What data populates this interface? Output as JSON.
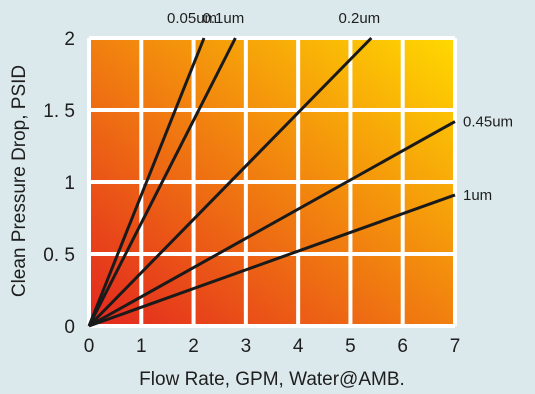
{
  "chart_data": {
    "type": "line",
    "xlabel": "Flow Rate, GPM, Water@AMB.",
    "ylabel": "Clean Pressure Drop, PSID",
    "xlim": [
      0,
      7
    ],
    "ylim": [
      0,
      2
    ],
    "x_ticks": [
      "0",
      "1",
      "2",
      "3",
      "4",
      "5",
      "6",
      "7"
    ],
    "y_ticks": [
      "0",
      "0. 5",
      "1",
      "1. 5",
      "2"
    ],
    "grid": true,
    "background": {
      "gradient_from": "#e3261f",
      "gradient_to": "#ffd900",
      "grid_color": "#ffffff"
    },
    "line_color": "#1a1a1a",
    "series": [
      {
        "name": "0.05um",
        "points": [
          [
            0,
            0
          ],
          [
            2.2,
            2.0
          ]
        ]
      },
      {
        "name": "0.1um",
        "points": [
          [
            0,
            0
          ],
          [
            2.8,
            2.0
          ]
        ]
      },
      {
        "name": "0.2um",
        "points": [
          [
            0,
            0
          ],
          [
            5.4,
            2.0
          ]
        ]
      },
      {
        "name": "0.45um",
        "points": [
          [
            0,
            0
          ],
          [
            7.0,
            1.42
          ]
        ]
      },
      {
        "name": "1um",
        "points": [
          [
            0,
            0
          ],
          [
            7.0,
            0.91
          ]
        ]
      }
    ]
  }
}
